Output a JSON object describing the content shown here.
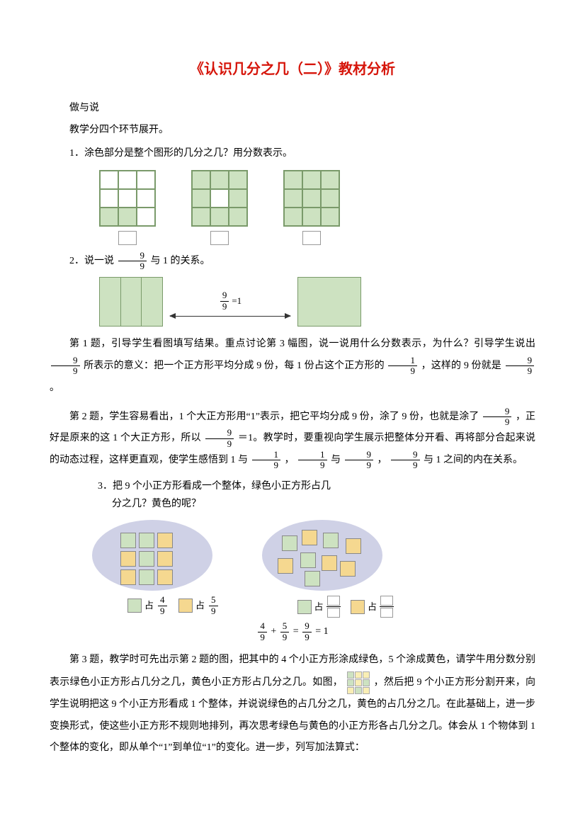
{
  "title": "《认识几分之几（二）》教材分析",
  "intro": {
    "line1": "做与说",
    "line2": "教学分四个环节展开。"
  },
  "q1": {
    "text": "1．涂色部分是整个图形的几分之几？用分数表示。",
    "grids": [
      [
        0,
        0,
        0,
        0,
        0,
        0,
        1,
        1,
        0
      ],
      [
        1,
        1,
        1,
        1,
        0,
        1,
        1,
        1,
        1
      ],
      [
        1,
        1,
        1,
        1,
        1,
        1,
        1,
        1,
        1
      ]
    ]
  },
  "q2": {
    "text_prefix": "2．说一说",
    "text_suffix": "与 1 的关系。",
    "frac": {
      "n": "9",
      "d": "9"
    },
    "label_eq": "=1"
  },
  "para1": {
    "a": "第 1 题，引导学生看图填写结果。重点讨论第 3 幅图，说一说用什么分数表示，为什么？引导学生说出",
    "f1": {
      "n": "9",
      "d": "9"
    },
    "b": "所表示的意义：把一个正方形平均分成 9 份，每 1 份占这个正方形的",
    "f2": {
      "n": "1",
      "d": "9"
    },
    "c": "，这样的 9 份就是",
    "f3": {
      "n": "9",
      "d": "9"
    },
    "d": "。"
  },
  "para2": {
    "a": "第 2 题，学生容易看出，1 个大正方形用“1”表示，把它平均分成 9 份，涂了 9 份，也就是涂了",
    "f1": {
      "n": "9",
      "d": "9"
    },
    "b": "，正好是原来的这 1 个大正方形，所以",
    "f2": {
      "n": "9",
      "d": "9"
    },
    "c": "＝1。教学时，要重视向学生展示把整体分开看、再将部分合起来说的动态过程，这样更直观，使学生感悟到 1 与",
    "f3": {
      "n": "1",
      "d": "9"
    },
    "d": "，",
    "f4": {
      "n": "1",
      "d": "9"
    },
    "e": "与",
    "f5": {
      "n": "9",
      "d": "9"
    },
    "g": "，",
    "f6": {
      "n": "9",
      "d": "9"
    },
    "h": "与 1 之间的内在关系。"
  },
  "q3": {
    "line1": "3．把 9 个小正方形看成一个整体，绿色小正方形占几",
    "line2": "分之几？黄色的呢？",
    "left": {
      "zhan": "占",
      "f1": {
        "n": "4",
        "d": "9"
      },
      "f2": {
        "n": "5",
        "d": "9"
      }
    },
    "right": {
      "zhan": "占"
    },
    "equation": {
      "a": {
        "n": "4",
        "d": "9"
      },
      "plus": "+",
      "b": {
        "n": "5",
        "d": "9"
      },
      "eq1": "=",
      "c": {
        "n": "9",
        "d": "9"
      },
      "eq2": "=",
      "one": "1"
    }
  },
  "para3": {
    "a": "第 3 题，教学时可先出示第 2 题的图，把其中的 4 个小正方形涂成绿色，5 个涂成黄色，请学牛用分数分别表示绿色小正方形占几分之几，黄色小正方形占几分之几。如图，",
    "b": "，然后把 9 个小正方形分割开来，向学生说明把这 9 个小正方形看成 1 个整体，并说说绿色的占几分之几，黄色的占几分之几。在此基础上，进一步变换形式，使这些小正方形不规则地排列，再次思考绿色与黄色的小正方形各占几分之几。体会从 1 个物体到 1 个整体的变化，即从单个“1”到单位“1”的变化。进一步，列写加法算式："
  },
  "colors": {
    "accent": "#d6150a",
    "fill": "#cde2c1",
    "yellow": "#f5d890",
    "oval": "#cfd1e6"
  }
}
